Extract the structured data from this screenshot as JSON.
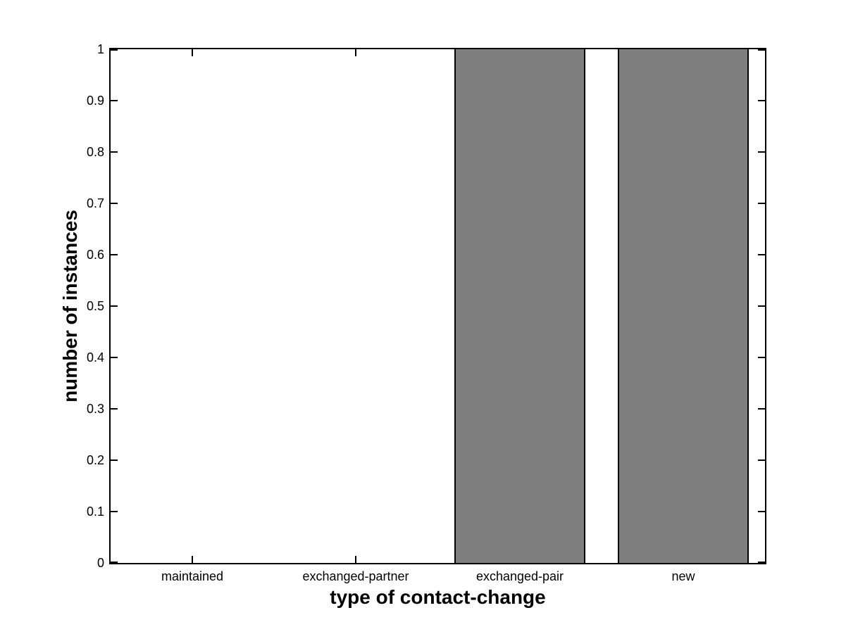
{
  "figure": {
    "background_color": "#ffffff",
    "axis_color": "#000000"
  },
  "chart_data": {
    "type": "bar",
    "title": "",
    "categories": [
      "maintained",
      "exchanged-partner",
      "exchanged-pair",
      "new"
    ],
    "values": [
      0,
      0,
      1,
      1
    ],
    "xlabel": "type of contact-change",
    "ylabel": "number of instances",
    "ylim": [
      0,
      1
    ],
    "yticks": [
      0,
      0.1,
      0.2,
      0.3,
      0.4,
      0.5,
      0.6,
      0.7,
      0.8,
      0.9,
      1
    ],
    "ytick_labels": [
      "0",
      "0.1",
      "0.2",
      "0.3",
      "0.4",
      "0.5",
      "0.6",
      "0.7",
      "0.8",
      "0.9",
      "1"
    ],
    "xlim_units": [
      0.5,
      4.5
    ],
    "bar_width_fraction": 0.8,
    "bar_color": "#7f7f7f",
    "bar_edge_color": "#000000",
    "grid": false,
    "legend": null,
    "tick_direction": "in",
    "box": true
  }
}
